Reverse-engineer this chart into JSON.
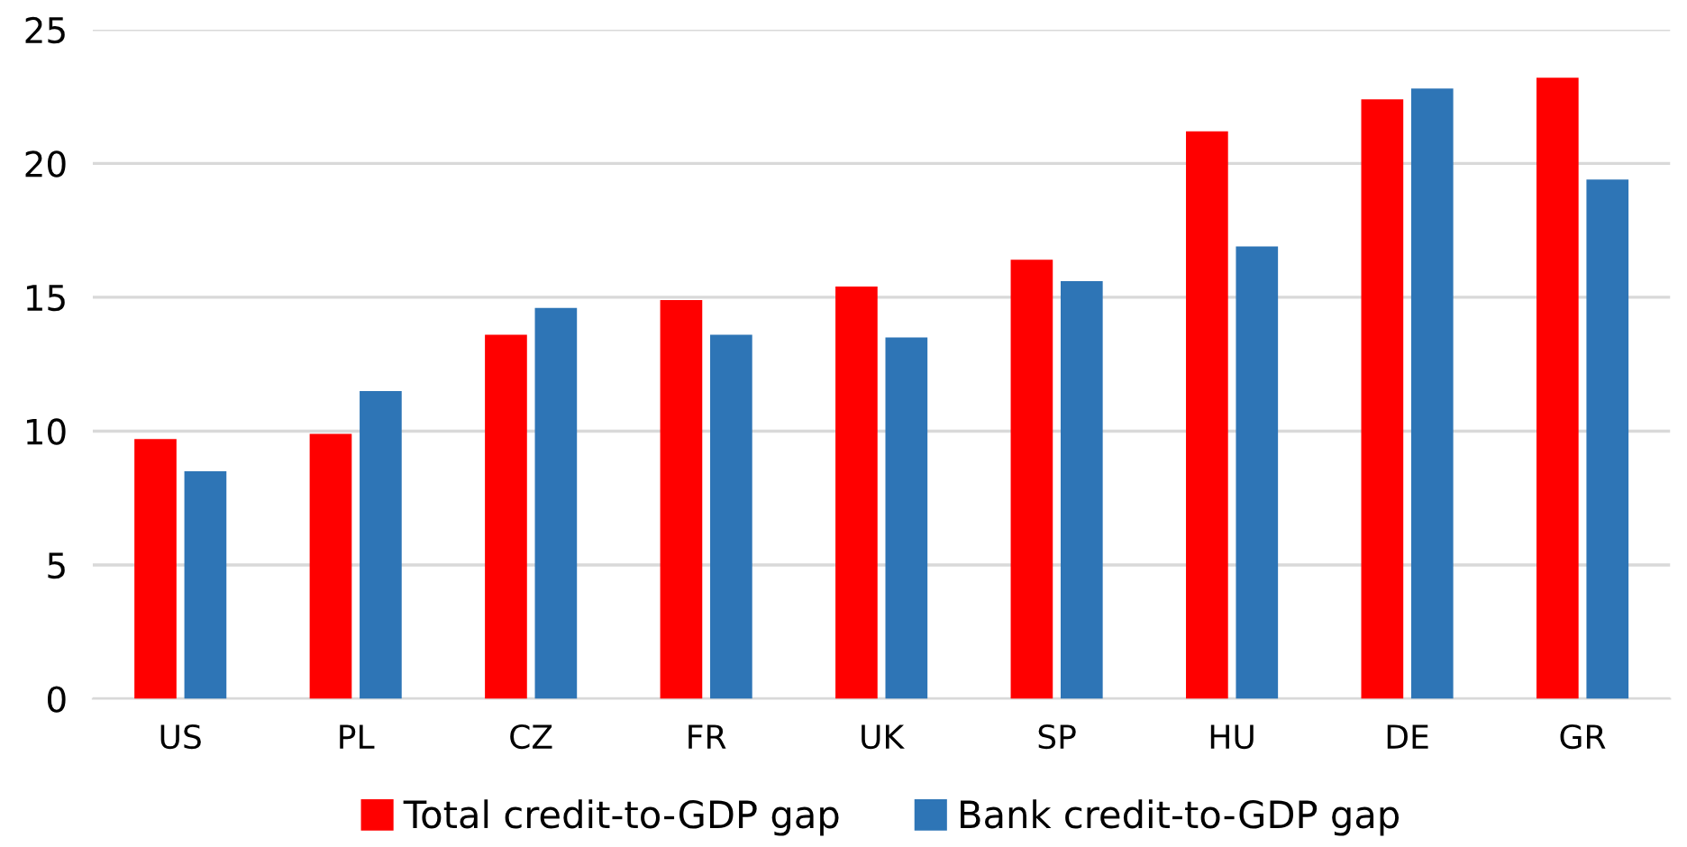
{
  "chart_data": {
    "type": "bar",
    "categories": [
      "US",
      "PL",
      "CZ",
      "FR",
      "UK",
      "SP",
      "HU",
      "DE",
      "GR"
    ],
    "series": [
      {
        "name": "Total credit-to-GDP gap",
        "color": "#ff0000",
        "values": [
          9.7,
          9.9,
          13.6,
          14.9,
          15.4,
          16.4,
          21.2,
          22.4,
          23.2
        ]
      },
      {
        "name": "Bank credit-to-GDP gap",
        "color": "#2e75b6",
        "values": [
          8.5,
          11.5,
          14.6,
          13.6,
          13.5,
          15.6,
          16.9,
          22.8,
          19.4
        ]
      }
    ],
    "ylim": [
      0,
      25
    ],
    "yticks": [
      0,
      5,
      10,
      15,
      20,
      25
    ],
    "grid": "y",
    "legend": "bottom"
  }
}
